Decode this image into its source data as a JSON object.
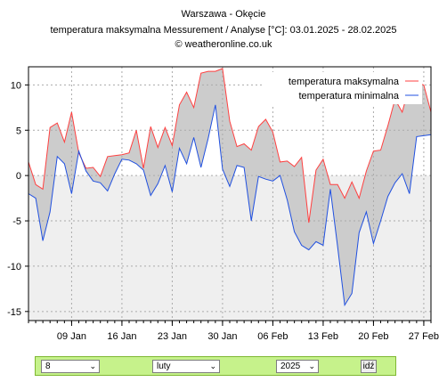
{
  "header": {
    "station": "Warszawa - Okęcie",
    "subtitle": "temperatura maksymalna Messurement / Analyse [°C]: 03.01.2025 - 28.02.2025",
    "copyright": "© weatheronline.co.uk"
  },
  "chart_data": {
    "type": "line",
    "x": [
      "2025-01-03",
      "2025-01-04",
      "2025-01-05",
      "2025-01-06",
      "2025-01-07",
      "2025-01-08",
      "2025-01-09",
      "2025-01-10",
      "2025-01-11",
      "2025-01-12",
      "2025-01-13",
      "2025-01-14",
      "2025-01-15",
      "2025-01-16",
      "2025-01-17",
      "2025-01-18",
      "2025-01-19",
      "2025-01-20",
      "2025-01-21",
      "2025-01-22",
      "2025-01-23",
      "2025-01-24",
      "2025-01-25",
      "2025-01-26",
      "2025-01-27",
      "2025-01-28",
      "2025-01-29",
      "2025-01-30",
      "2025-01-31",
      "2025-02-01",
      "2025-02-02",
      "2025-02-03",
      "2025-02-04",
      "2025-02-05",
      "2025-02-06",
      "2025-02-07",
      "2025-02-08",
      "2025-02-09",
      "2025-02-10",
      "2025-02-11",
      "2025-02-12",
      "2025-02-13",
      "2025-02-14",
      "2025-02-15",
      "2025-02-16",
      "2025-02-17",
      "2025-02-18",
      "2025-02-19",
      "2025-02-20",
      "2025-02-21",
      "2025-02-22",
      "2025-02-23",
      "2025-02-24",
      "2025-02-25",
      "2025-02-26",
      "2025-02-27",
      "2025-02-28"
    ],
    "series": [
      {
        "name": "temperatura maksymalna",
        "color": "#ff4040",
        "values": [
          1.5,
          -1.0,
          -1.5,
          5.3,
          5.8,
          3.7,
          7.0,
          2.5,
          0.8,
          0.9,
          -0.1,
          2.1,
          2.2,
          2.3,
          2.5,
          5.0,
          0.8,
          5.4,
          3.1,
          5.3,
          3.3,
          7.8,
          9.2,
          7.5,
          11.3,
          11.5,
          11.5,
          11.8,
          6.0,
          3.2,
          3.5,
          2.8,
          5.4,
          6.2,
          4.8,
          1.5,
          1.6,
          1.0,
          2.0,
          -5.2,
          0.6,
          1.8,
          -1.0,
          -1.0,
          -2.5,
          -0.7,
          -2.5,
          0.5,
          2.7,
          2.8,
          5.5,
          8.4,
          7.0,
          9.9,
          10.2,
          10.0,
          7.0
        ]
      },
      {
        "name": "temperatura minimalna",
        "color": "#2050e0",
        "values": [
          -2.0,
          -2.5,
          -7.2,
          -4.0,
          2.1,
          1.3,
          -2.0,
          2.7,
          0.5,
          -0.6,
          -0.8,
          -1.7,
          0.2,
          1.8,
          1.7,
          1.3,
          0.6,
          -2.2,
          -0.9,
          1.1,
          -1.8,
          3.0,
          1.3,
          4.2,
          0.9,
          4.1,
          7.8,
          0.7,
          -1.2,
          1.1,
          0.9,
          -5.0,
          -0.1,
          -0.4,
          -0.6,
          0.0,
          -2.7,
          -6.2,
          -7.7,
          -8.2,
          -7.3,
          -7.7,
          -1.5,
          -7.8,
          -14.3,
          -13.0,
          -6.3,
          -4.0,
          -7.5,
          -5.0,
          -2.3,
          -0.8,
          0.2,
          -2.0,
          4.3,
          4.4,
          4.5
        ]
      }
    ],
    "x_tick_labels": [
      "09 Jan",
      "16 Jan",
      "23 Jan",
      "30 Jan",
      "06 Feb",
      "13 Feb",
      "20 Feb",
      "27 Feb"
    ],
    "y_tick_labels": [
      "10",
      "5",
      "0",
      "-5",
      "-10",
      "-15"
    ],
    "ylim": [
      -16,
      12
    ],
    "grid": true,
    "legend": "top-right"
  },
  "controls": {
    "day_value": "8",
    "month_value": "luty",
    "year_value": "2025",
    "go_label": "idź"
  }
}
